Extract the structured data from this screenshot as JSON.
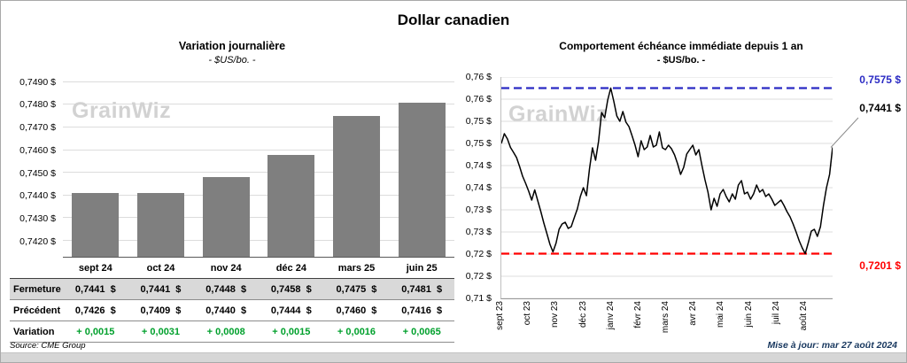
{
  "page": {
    "title": "Dollar canadien",
    "source": "Source: CME Group",
    "updated": "Mise à jour: mar 27 août 2024",
    "watermark": "GrainWiz"
  },
  "colors": {
    "bar": "#7f7f7f",
    "positive": "#00a02c",
    "high": "#2b2bc4",
    "low": "#ff0000",
    "updated_text": "#17375e"
  },
  "table": {
    "columns": [
      "sept 24",
      "oct 24",
      "nov 24",
      "déc 24",
      "mars 25",
      "juin 25"
    ],
    "rows": [
      {
        "label": "Fermeture",
        "values": [
          "0,7441  $",
          "0,7441  $",
          "0,7448  $",
          "0,7458  $",
          "0,7475  $",
          "0,7481  $"
        ]
      },
      {
        "label": "Précédent",
        "values": [
          "0,7426  $",
          "0,7409  $",
          "0,7440  $",
          "0,7444  $",
          "0,7460  $",
          "0,7416  $"
        ]
      },
      {
        "label": "Variation",
        "values": [
          "+ 0,0015",
          "+ 0,0031",
          "+ 0,0008",
          "+ 0,0015",
          "+ 0,0016",
          "+ 0,0065"
        ]
      }
    ]
  },
  "chart_data": [
    {
      "type": "bar",
      "title": "Variation journalière",
      "subtitle": "- $US/bo. -",
      "categories": [
        "sept 24",
        "oct 24",
        "nov 24",
        "déc 24",
        "mars 25",
        "juin 25"
      ],
      "values": [
        0.7441,
        0.7441,
        0.7448,
        0.7458,
        0.7475,
        0.7481
      ],
      "ylim": [
        0.742,
        0.749
      ],
      "axis_range": [
        0.7413,
        0.7493
      ],
      "grid": true,
      "y_ticks": [
        {
          "value": 0.742,
          "label": "0,7420 $"
        },
        {
          "value": 0.743,
          "label": "0,7430 $"
        },
        {
          "value": 0.744,
          "label": "0,7440 $"
        },
        {
          "value": 0.745,
          "label": "0,7450 $"
        },
        {
          "value": 0.746,
          "label": "0,7460 $"
        },
        {
          "value": 0.747,
          "label": "0,7470 $"
        },
        {
          "value": 0.748,
          "label": "0,7480 $"
        },
        {
          "value": 0.749,
          "label": "0,7490 $"
        }
      ]
    },
    {
      "type": "line",
      "title": "Comportement échéance immédiate depuis 1 an",
      "subtitle": "- $US/bo. -",
      "x_labels": [
        "sept 23",
        "oct 23",
        "nov 23",
        "déc 23",
        "janv 24",
        "févr 24",
        "mars 24",
        "avr 24",
        "mai 24",
        "juin 24",
        "juil 24",
        "août 24"
      ],
      "ylim": [
        0.71,
        0.76
      ],
      "grid": true,
      "y_tick_labels_top_to_bottom": [
        "0,76 $",
        "0,76 $",
        "0,75 $",
        "0,75 $",
        "0,74 $",
        "0,74 $",
        "0,73 $",
        "0,73 $",
        "0,72 $",
        "0,72 $",
        "0,71 $"
      ],
      "high_line": {
        "value": 0.7575,
        "label": "0,7575 $",
        "color": "#2b2bc4"
      },
      "low_line": {
        "value": 0.7201,
        "label": "0,7201 $",
        "color": "#ff0000"
      },
      "last_point": {
        "value": 0.7441,
        "label": "0,7441 $"
      },
      "line_color": "#000000",
      "values": [
        0.745,
        0.7472,
        0.746,
        0.7441,
        0.743,
        0.7418,
        0.7398,
        0.7376,
        0.736,
        0.7342,
        0.7322,
        0.7345,
        0.732,
        0.7296,
        0.727,
        0.7246,
        0.7222,
        0.7205,
        0.7225,
        0.7256,
        0.7268,
        0.7272,
        0.7258,
        0.7262,
        0.7282,
        0.7302,
        0.733,
        0.735,
        0.7332,
        0.7392,
        0.744,
        0.7412,
        0.7455,
        0.752,
        0.7508,
        0.7548,
        0.7575,
        0.7545,
        0.7512,
        0.75,
        0.7522,
        0.7498,
        0.7488,
        0.7468,
        0.7446,
        0.742,
        0.7456,
        0.7436,
        0.7442,
        0.7468,
        0.7442,
        0.7446,
        0.7476,
        0.744,
        0.7436,
        0.7446,
        0.7438,
        0.7424,
        0.7404,
        0.738,
        0.7396,
        0.7426,
        0.7436,
        0.7446,
        0.7424,
        0.7436,
        0.74,
        0.7368,
        0.734,
        0.73,
        0.7326,
        0.7308,
        0.7336,
        0.7346,
        0.733,
        0.7318,
        0.7336,
        0.7324,
        0.7356,
        0.7366,
        0.7336,
        0.734,
        0.7324,
        0.7336,
        0.7356,
        0.734,
        0.7346,
        0.733,
        0.7336,
        0.7324,
        0.731,
        0.7316,
        0.7322,
        0.731,
        0.7296,
        0.7284,
        0.7268,
        0.725,
        0.723,
        0.7214,
        0.7201,
        0.7226,
        0.7252,
        0.7256,
        0.724,
        0.7262,
        0.731,
        0.735,
        0.738,
        0.7441
      ]
    }
  ]
}
